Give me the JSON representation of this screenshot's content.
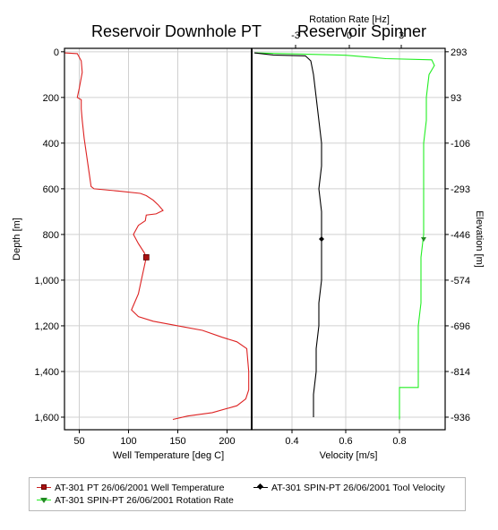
{
  "chart_data": [
    {
      "type": "line",
      "title": "Reservoir Downhole PT",
      "xlabel": "Well Temperature [deg C]",
      "ylabel": "Depth [m]",
      "xlim": [
        35,
        225
      ],
      "ylim": [
        1655,
        -15
      ],
      "xticks": [
        "50",
        "100",
        "150",
        "200"
      ],
      "yticks": [
        "0",
        "200",
        "400",
        "600",
        "800",
        "1,000",
        "1,200",
        "1,400",
        "1,600"
      ],
      "grid": true,
      "series": [
        {
          "name": "AT-301 PT 26/06/2001 Well Temperature",
          "color": "#dd2222",
          "marker_at": [
            118,
            900
          ],
          "points": [
            [
              35,
              5
            ],
            [
              48,
              8
            ],
            [
              52,
              40
            ],
            [
              53,
              90
            ],
            [
              50,
              160
            ],
            [
              48,
              200
            ],
            [
              52,
              210
            ],
            [
              52,
              250
            ],
            [
              53,
              300
            ],
            [
              55,
              380
            ],
            [
              58,
              470
            ],
            [
              60,
              530
            ],
            [
              62,
              590
            ],
            [
              65,
              600
            ],
            [
              90,
              610
            ],
            [
              112,
              620
            ],
            [
              118,
              630
            ],
            [
              125,
              650
            ],
            [
              130,
              670
            ],
            [
              135,
              695
            ],
            [
              128,
              710
            ],
            [
              118,
              715
            ],
            [
              117,
              740
            ],
            [
              110,
              760
            ],
            [
              105,
              800
            ],
            [
              110,
              840
            ],
            [
              116,
              880
            ],
            [
              118,
              900
            ],
            [
              116,
              940
            ],
            [
              113,
              1000
            ],
            [
              110,
              1060
            ],
            [
              105,
              1110
            ],
            [
              103,
              1130
            ],
            [
              110,
              1160
            ],
            [
              125,
              1180
            ],
            [
              150,
              1200
            ],
            [
              175,
              1220
            ],
            [
              195,
              1250
            ],
            [
              210,
              1270
            ],
            [
              220,
              1300
            ],
            [
              222,
              1400
            ],
            [
              222,
              1480
            ],
            [
              219,
              1520
            ],
            [
              210,
              1550
            ],
            [
              185,
              1580
            ],
            [
              160,
              1595
            ],
            [
              145,
              1610
            ]
          ]
        }
      ]
    },
    {
      "type": "line",
      "title": "Reservoir Spinner",
      "xlabel": "Velocity [m/s]",
      "ylabel": "Elevation [m]",
      "x2label": "Rotation Rate [Hz]",
      "xlim": [
        0.25,
        0.97
      ],
      "xticks": [
        "0.4",
        "0.6",
        "0.8"
      ],
      "x2ticks": [
        "-3",
        "0",
        "3"
      ],
      "y2ticks": [
        "293",
        "93",
        "-106",
        "-293",
        "-446",
        "-574",
        "-696",
        "-814",
        "-936"
      ],
      "grid": true,
      "series": [
        {
          "name": "AT-301 SPIN-PT 26/06/2001 Tool Velocity",
          "color": "#000000",
          "marker_at": [
            0.51,
            820
          ],
          "points": [
            [
              0.26,
              5
            ],
            [
              0.33,
              14
            ],
            [
              0.45,
              18
            ],
            [
              0.47,
              40
            ],
            [
              0.48,
              100
            ],
            [
              0.49,
              200
            ],
            [
              0.5,
              300
            ],
            [
              0.51,
              400
            ],
            [
              0.51,
              500
            ],
            [
              0.5,
              600
            ],
            [
              0.51,
              700
            ],
            [
              0.51,
              800
            ],
            [
              0.51,
              900
            ],
            [
              0.51,
              1000
            ],
            [
              0.5,
              1100
            ],
            [
              0.5,
              1200
            ],
            [
              0.49,
              1300
            ],
            [
              0.49,
              1400
            ],
            [
              0.48,
              1500
            ],
            [
              0.48,
              1600
            ]
          ]
        },
        {
          "name": "AT-301 SPIN-PT 26/06/2001 Rotation Rate",
          "color": "#22ee22",
          "marker_at": [
            0.89,
            820
          ],
          "points": [
            [
              0.26,
              5
            ],
            [
              0.6,
              15
            ],
            [
              0.7,
              25
            ],
            [
              0.75,
              30
            ],
            [
              0.92,
              35
            ],
            [
              0.93,
              60
            ],
            [
              0.91,
              100
            ],
            [
              0.9,
              200
            ],
            [
              0.9,
              300
            ],
            [
              0.89,
              400
            ],
            [
              0.89,
              500
            ],
            [
              0.89,
              600
            ],
            [
              0.89,
              700
            ],
            [
              0.89,
              800
            ],
            [
              0.88,
              900
            ],
            [
              0.88,
              1000
            ],
            [
              0.88,
              1100
            ],
            [
              0.87,
              1200
            ],
            [
              0.87,
              1300
            ],
            [
              0.87,
              1400
            ],
            [
              0.87,
              1470
            ],
            [
              0.8,
              1470
            ],
            [
              0.8,
              1550
            ],
            [
              0.8,
              1610
            ]
          ]
        }
      ]
    }
  ],
  "legend": [
    {
      "label": "AT-301 PT 26/06/2001 Well Temperature",
      "color": "#aa1111",
      "marker": "square"
    },
    {
      "label": "AT-301 SPIN-PT 26/06/2001 Tool Velocity",
      "color": "#000000",
      "marker": "diamond"
    },
    {
      "label": "AT-301 SPIN-PT 26/06/2001 Rotation Rate",
      "color": "#22aa22",
      "marker": "triangle-down"
    }
  ]
}
